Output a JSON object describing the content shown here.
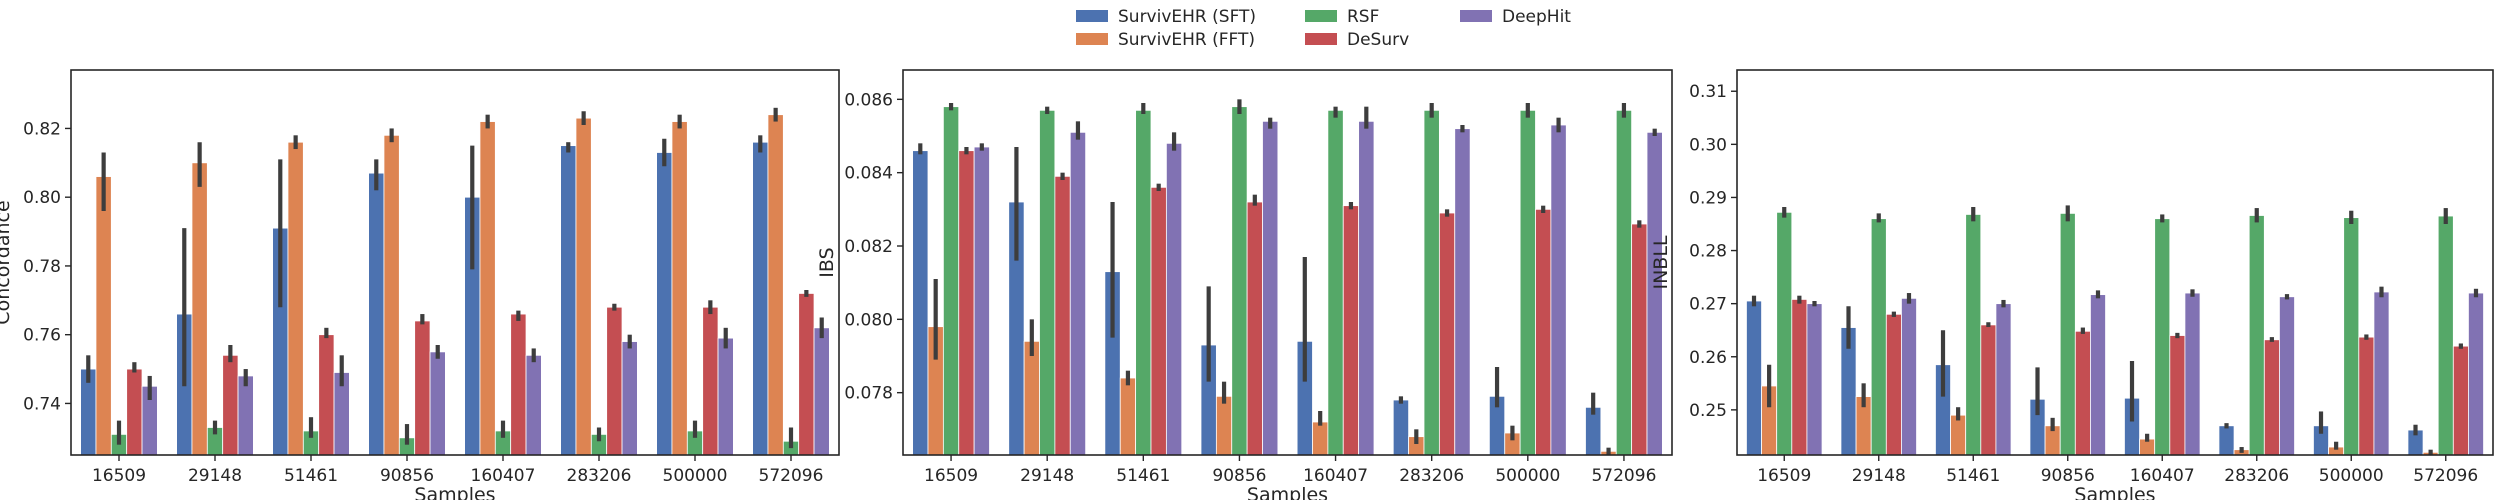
{
  "legend": {
    "entries": [
      {
        "label": "SurvivEHR (SFT)",
        "color": "#4c72b0"
      },
      {
        "label": "SurvivEHR (FFT)",
        "color": "#dd8452"
      },
      {
        "label": "RSF",
        "color": "#55a868"
      },
      {
        "label": "DeSurv",
        "color": "#c44e52"
      },
      {
        "label": "DeepHit",
        "color": "#8172b3"
      }
    ],
    "placement": "top-center"
  },
  "chart_data": [
    {
      "type": "bar",
      "xlabel": "Samples",
      "ylabel": "Concordance",
      "categories": [
        "16509",
        "29148",
        "51461",
        "90856",
        "160407",
        "283206",
        "500000",
        "572096"
      ],
      "ylim": [
        0.725,
        0.837
      ],
      "yticks": [
        0.74,
        0.76,
        0.78,
        0.8,
        0.82
      ],
      "ytick_labels": [
        "0.74",
        "0.76",
        "0.78",
        "0.80",
        "0.82"
      ],
      "grid": false,
      "series": [
        {
          "name": "SurvivEHR (SFT)",
          "color": "#4c72b0",
          "values": [
            0.75,
            0.766,
            0.791,
            0.807,
            0.8,
            0.815,
            0.813,
            0.816
          ],
          "err_low": [
            0.746,
            0.745,
            0.768,
            0.802,
            0.779,
            0.813,
            0.809,
            0.813
          ],
          "err_high": [
            0.754,
            0.791,
            0.811,
            0.811,
            0.815,
            0.816,
            0.817,
            0.818
          ]
        },
        {
          "name": "SurvivEHR (FFT)",
          "color": "#dd8452",
          "values": [
            0.806,
            0.81,
            0.816,
            0.818,
            0.822,
            0.823,
            0.822,
            0.824
          ],
          "err_low": [
            0.796,
            0.803,
            0.814,
            0.816,
            0.82,
            0.821,
            0.82,
            0.822
          ],
          "err_high": [
            0.813,
            0.816,
            0.818,
            0.82,
            0.824,
            0.825,
            0.824,
            0.826
          ]
        },
        {
          "name": "RSF",
          "color": "#55a868",
          "values": [
            0.731,
            0.733,
            0.732,
            0.73,
            0.732,
            0.731,
            0.732,
            0.729
          ],
          "err_low": [
            0.728,
            0.731,
            0.73,
            0.728,
            0.73,
            0.729,
            0.73,
            0.727
          ],
          "err_high": [
            0.735,
            0.735,
            0.736,
            0.734,
            0.735,
            0.733,
            0.735,
            0.733
          ]
        },
        {
          "name": "DeSurv",
          "color": "#c44e52",
          "values": [
            0.75,
            0.754,
            0.76,
            0.764,
            0.766,
            0.768,
            0.768,
            0.772
          ],
          "err_low": [
            0.749,
            0.752,
            0.759,
            0.763,
            0.764,
            0.767,
            0.766,
            0.771
          ],
          "err_high": [
            0.752,
            0.757,
            0.762,
            0.766,
            0.767,
            0.769,
            0.77,
            0.773
          ]
        },
        {
          "name": "DeepHit",
          "color": "#8172b3",
          "values": [
            0.745,
            0.748,
            0.749,
            0.755,
            0.754,
            0.758,
            0.759,
            0.762
          ],
          "err_low": [
            0.741,
            0.745,
            0.745,
            0.753,
            0.752,
            0.756,
            0.756,
            0.759
          ],
          "err_high": [
            0.748,
            0.75,
            0.754,
            0.757,
            0.756,
            0.76,
            0.762,
            0.765
          ]
        }
      ]
    },
    {
      "type": "bar",
      "xlabel": "Samples",
      "ylabel": "IBS",
      "categories": [
        "16509",
        "29148",
        "51461",
        "90856",
        "160407",
        "283206",
        "500000",
        "572096"
      ],
      "ylim": [
        0.0763,
        0.0868
      ],
      "yticks": [
        0.078,
        0.08,
        0.082,
        0.084,
        0.086
      ],
      "ytick_labels": [
        "0.078",
        "0.080",
        "0.082",
        "0.084",
        "0.086"
      ],
      "grid": false,
      "series": [
        {
          "name": "SurvivEHR (SFT)",
          "color": "#4c72b0",
          "values": [
            0.0846,
            0.0832,
            0.0813,
            0.0793,
            0.0794,
            0.0778,
            0.0779,
            0.0776
          ],
          "err_low": [
            0.0845,
            0.0816,
            0.0795,
            0.0783,
            0.0783,
            0.0777,
            0.0776,
            0.0774
          ],
          "err_high": [
            0.0848,
            0.0847,
            0.0832,
            0.0809,
            0.0817,
            0.0779,
            0.0787,
            0.078
          ]
        },
        {
          "name": "SurvivEHR (FFT)",
          "color": "#dd8452",
          "values": [
            0.0798,
            0.0794,
            0.0784,
            0.0779,
            0.0772,
            0.0768,
            0.0769,
            0.0764
          ],
          "err_low": [
            0.0789,
            0.079,
            0.0782,
            0.0777,
            0.0771,
            0.0766,
            0.0767,
            0.0763
          ],
          "err_high": [
            0.0811,
            0.08,
            0.0786,
            0.0783,
            0.0775,
            0.077,
            0.0771,
            0.0765
          ]
        },
        {
          "name": "RSF",
          "color": "#55a868",
          "values": [
            0.0858,
            0.0857,
            0.0857,
            0.0858,
            0.0857,
            0.0857,
            0.0857,
            0.0857
          ],
          "err_low": [
            0.0857,
            0.0856,
            0.0856,
            0.0856,
            0.0855,
            0.0855,
            0.0855,
            0.0855
          ],
          "err_high": [
            0.0859,
            0.0858,
            0.0859,
            0.086,
            0.0858,
            0.0859,
            0.0859,
            0.0859
          ]
        },
        {
          "name": "DeSurv",
          "color": "#c44e52",
          "values": [
            0.0846,
            0.0839,
            0.0836,
            0.0832,
            0.0831,
            0.0829,
            0.083,
            0.0826
          ],
          "err_low": [
            0.0845,
            0.0838,
            0.0835,
            0.0831,
            0.083,
            0.0828,
            0.0829,
            0.0825
          ],
          "err_high": [
            0.0847,
            0.084,
            0.0837,
            0.0834,
            0.0832,
            0.083,
            0.0831,
            0.0827
          ]
        },
        {
          "name": "DeepHit",
          "color": "#8172b3",
          "values": [
            0.0847,
            0.0851,
            0.0848,
            0.0854,
            0.0854,
            0.0852,
            0.0853,
            0.0851
          ],
          "err_low": [
            0.0846,
            0.0849,
            0.0846,
            0.0852,
            0.0852,
            0.0851,
            0.0851,
            0.085
          ],
          "err_high": [
            0.0848,
            0.0854,
            0.0851,
            0.0855,
            0.0858,
            0.0853,
            0.0855,
            0.0852
          ]
        }
      ]
    },
    {
      "type": "bar",
      "xlabel": "Samples",
      "ylabel": "INBLL",
      "categories": [
        "16509",
        "29148",
        "51461",
        "90856",
        "160407",
        "283206",
        "500000",
        "572096"
      ],
      "ylim": [
        0.2415,
        0.314
      ],
      "yticks": [
        0.25,
        0.26,
        0.27,
        0.28,
        0.29,
        0.3,
        0.31
      ],
      "ytick_labels": [
        "0.25",
        "0.26",
        "0.27",
        "0.28",
        "0.29",
        "0.30",
        "0.31"
      ],
      "grid": false,
      "series": [
        {
          "name": "SurvivEHR (SFT)",
          "color": "#4c72b0",
          "values": [
            0.2705,
            0.2655,
            0.2585,
            0.252,
            0.2522,
            0.247,
            0.247,
            0.2462
          ],
          "err_low": [
            0.2695,
            0.2615,
            0.2525,
            0.249,
            0.2478,
            0.2465,
            0.2455,
            0.2452
          ],
          "err_high": [
            0.2715,
            0.2695,
            0.265,
            0.258,
            0.2592,
            0.2475,
            0.2497,
            0.2472
          ]
        },
        {
          "name": "SurvivEHR (FFT)",
          "color": "#dd8452",
          "values": [
            0.2545,
            0.2525,
            0.249,
            0.247,
            0.2445,
            0.2425,
            0.243,
            0.242
          ],
          "err_low": [
            0.2505,
            0.2505,
            0.248,
            0.246,
            0.244,
            0.2419,
            0.2425,
            0.2415
          ],
          "err_high": [
            0.2585,
            0.255,
            0.2505,
            0.2485,
            0.2455,
            0.243,
            0.244,
            0.2425
          ]
        },
        {
          "name": "RSF",
          "color": "#55a868",
          "values": [
            0.2872,
            0.286,
            0.2868,
            0.287,
            0.286,
            0.2866,
            0.2862,
            0.2865
          ],
          "err_low": [
            0.2862,
            0.2853,
            0.2855,
            0.2855,
            0.2853,
            0.2853,
            0.285,
            0.285
          ],
          "err_high": [
            0.2882,
            0.287,
            0.2882,
            0.2885,
            0.2868,
            0.288,
            0.2875,
            0.288
          ]
        },
        {
          "name": "DeSurv",
          "color": "#c44e52",
          "values": [
            0.2708,
            0.268,
            0.266,
            0.2648,
            0.264,
            0.2632,
            0.2637,
            0.262
          ],
          "err_low": [
            0.27,
            0.2675,
            0.2656,
            0.2643,
            0.2635,
            0.2628,
            0.2632,
            0.2615
          ],
          "err_high": [
            0.2715,
            0.2685,
            0.2665,
            0.2655,
            0.2645,
            0.2637,
            0.2642,
            0.2625
          ]
        },
        {
          "name": "DeepHit",
          "color": "#8172b3",
          "values": [
            0.27,
            0.271,
            0.27,
            0.2717,
            0.272,
            0.2713,
            0.2722,
            0.272
          ],
          "err_low": [
            0.2695,
            0.27,
            0.2693,
            0.271,
            0.2713,
            0.2708,
            0.2712,
            0.2712
          ],
          "err_high": [
            0.2705,
            0.272,
            0.2707,
            0.2725,
            0.2727,
            0.2718,
            0.2732,
            0.2728
          ]
        }
      ]
    }
  ]
}
